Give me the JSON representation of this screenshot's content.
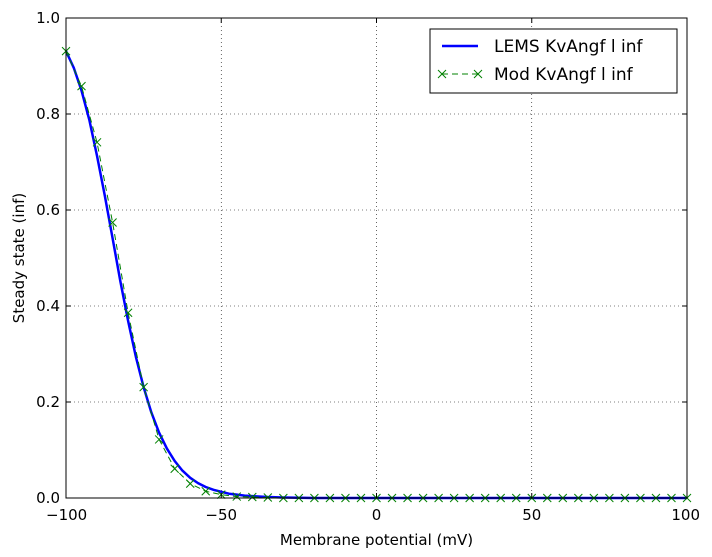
{
  "chart_data": {
    "type": "line",
    "xlabel": "Membrane potential (mV)",
    "ylabel": "Steady state (inf)",
    "xlim": [
      -100,
      100
    ],
    "ylim": [
      0.0,
      1.0
    ],
    "x_ticks": [
      -100,
      -50,
      0,
      50,
      100
    ],
    "x_tick_labels": [
      "−100",
      "−50",
      "0",
      "50",
      "100"
    ],
    "y_ticks": [
      0.0,
      0.2,
      0.4,
      0.6,
      0.8,
      1.0
    ],
    "y_tick_labels": [
      "0.0",
      "0.2",
      "0.4",
      "0.6",
      "0.8",
      "1.0"
    ],
    "grid": true,
    "legend_position": "top-right",
    "series": [
      {
        "name": "LEMS KvAngf l inf",
        "style": "solid-line",
        "color": "#0000ff",
        "x": [
          -100,
          -97.5,
          -95,
          -92.5,
          -90,
          -87.5,
          -85,
          -82.5,
          -80,
          -77.5,
          -75,
          -72.5,
          -70,
          -67.5,
          -65,
          -62.5,
          -60,
          -57.5,
          -55,
          -52.5,
          -50,
          -47.5,
          -45,
          -42.5,
          -40,
          -35,
          -30,
          -20,
          -10,
          0,
          20,
          40,
          60,
          80,
          100
        ],
        "y": [
          0.931,
          0.896,
          0.849,
          0.788,
          0.713,
          0.63,
          0.541,
          0.452,
          0.369,
          0.294,
          0.231,
          0.178,
          0.136,
          0.103,
          0.077,
          0.057,
          0.042,
          0.031,
          0.023,
          0.017,
          0.013,
          0.009,
          0.007,
          0.005,
          0.004,
          0.002,
          0.001,
          0.0,
          0.0,
          0.0,
          0.0,
          0.0,
          0.0,
          0.0,
          0.0
        ]
      },
      {
        "name": "Mod KvAngf l inf",
        "style": "dashed-x-markers",
        "color": "#008000",
        "x": [
          -100,
          -95,
          -90,
          -85,
          -80,
          -75,
          -70,
          -65,
          -60,
          -55,
          -50,
          -45,
          -40,
          -35,
          -30,
          -25,
          -20,
          -15,
          -10,
          -5,
          0,
          5,
          10,
          15,
          20,
          25,
          30,
          35,
          40,
          45,
          50,
          55,
          60,
          65,
          70,
          75,
          80,
          85,
          90,
          95,
          100
        ],
        "y": [
          0.931,
          0.858,
          0.741,
          0.574,
          0.386,
          0.231,
          0.122,
          0.061,
          0.03,
          0.014,
          0.007,
          0.003,
          0.002,
          0.001,
          0.0,
          0.0,
          0.0,
          0.0,
          0.0,
          0.0,
          0.0,
          0.0,
          0.0,
          0.0,
          0.0,
          0.0,
          0.0,
          0.0,
          0.0,
          0.0,
          0.0,
          0.0,
          0.0,
          0.0,
          0.0,
          0.0,
          0.0,
          0.0,
          0.0,
          0.0,
          0.0
        ]
      }
    ]
  }
}
